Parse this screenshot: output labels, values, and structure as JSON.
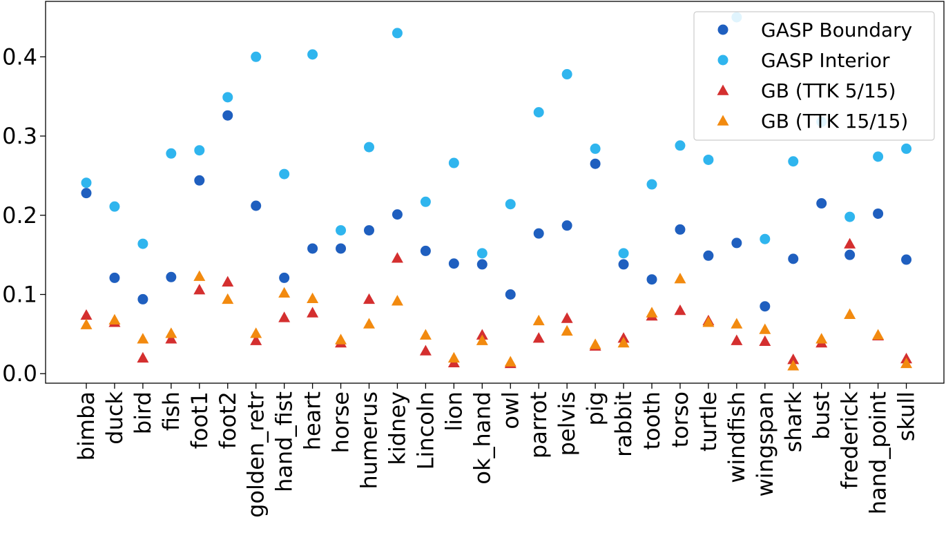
{
  "chart_data": {
    "type": "scatter",
    "title": "",
    "xlabel": "",
    "ylabel": "",
    "ylim": [
      -0.012,
      0.47
    ],
    "yticks": [
      0.0,
      0.1,
      0.2,
      0.3,
      0.4
    ],
    "ytick_labels": [
      "0.0",
      "0.1",
      "0.2",
      "0.3",
      "0.4"
    ],
    "grid": false,
    "legend_position": "top-right",
    "categories": [
      "bimba",
      "duck",
      "bird",
      "fish",
      "foot1",
      "foot2",
      "golden_retr",
      "hand_fist",
      "heart",
      "horse",
      "humerus",
      "kidney",
      "Lincoln",
      "lion",
      "ok_hand",
      "owl",
      "parrot",
      "pelvis",
      "pig",
      "rabbit",
      "tooth",
      "torso",
      "turtle",
      "windfish",
      "wingspan",
      "shark",
      "bust",
      "frederick",
      "hand_point",
      "skull"
    ],
    "series": [
      {
        "name": "GASP Boundary",
        "marker": "circle",
        "color": "#1f5fbf",
        "values": [
          0.228,
          0.121,
          0.094,
          0.122,
          0.244,
          0.326,
          0.212,
          0.121,
          0.158,
          0.158,
          0.181,
          0.201,
          0.155,
          0.139,
          0.138,
          0.1,
          0.177,
          0.187,
          0.265,
          0.138,
          0.119,
          0.182,
          0.149,
          0.165,
          0.085,
          0.145,
          0.215,
          0.15,
          0.202,
          0.144
        ]
      },
      {
        "name": "GASP Interior",
        "marker": "circle",
        "color": "#2fb5ee",
        "values": [
          0.241,
          0.211,
          0.164,
          0.278,
          0.282,
          0.349,
          0.4,
          0.252,
          0.403,
          0.181,
          0.286,
          0.43,
          0.217,
          0.266,
          0.152,
          0.214,
          0.33,
          0.378,
          0.284,
          0.152,
          0.239,
          0.288,
          0.27,
          0.45,
          0.17,
          0.268,
          0.318,
          0.198,
          0.274,
          0.284
        ]
      },
      {
        "name": "GB (TTK 5/15)",
        "marker": "triangle",
        "color": "#d42f2f",
        "values": [
          0.074,
          0.065,
          0.02,
          0.044,
          0.106,
          0.116,
          0.042,
          0.071,
          0.077,
          0.039,
          0.094,
          0.146,
          0.029,
          0.014,
          0.049,
          0.013,
          0.045,
          0.07,
          0.035,
          0.045,
          0.073,
          0.08,
          0.067,
          0.042,
          0.041,
          0.018,
          0.039,
          0.164,
          0.048,
          0.019
        ]
      },
      {
        "name": "GB (TTK 15/15)",
        "marker": "triangle",
        "color": "#f28a0f",
        "values": [
          0.062,
          0.068,
          0.044,
          0.051,
          0.123,
          0.094,
          0.051,
          0.102,
          0.095,
          0.043,
          0.063,
          0.092,
          0.049,
          0.02,
          0.042,
          0.015,
          0.067,
          0.054,
          0.037,
          0.039,
          0.077,
          0.12,
          0.065,
          0.063,
          0.056,
          0.01,
          0.044,
          0.075,
          0.049,
          0.013
        ]
      }
    ]
  }
}
